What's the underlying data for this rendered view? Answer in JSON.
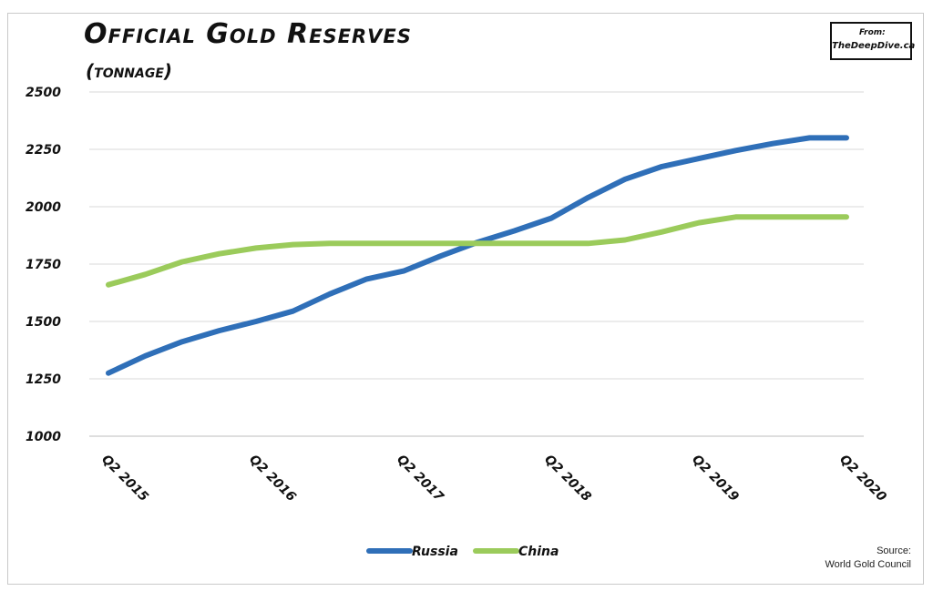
{
  "header": {
    "title": "Official Gold Reserves",
    "subtitle": "(tonnage)",
    "badge_line1": "From:",
    "badge_line2": "TheDeepDive.ca"
  },
  "footer": {
    "source_line1": "Source:",
    "source_line2": "World Gold Council"
  },
  "chart_data": {
    "type": "line",
    "title": "Official Gold Reserves",
    "subtitle": "(tonnage)",
    "x": [
      "Q2 2015",
      "Q3 2015",
      "Q4 2015",
      "Q1 2016",
      "Q2 2016",
      "Q3 2016",
      "Q4 2016",
      "Q1 2017",
      "Q2 2017",
      "Q3 2017",
      "Q4 2017",
      "Q1 2018",
      "Q2 2018",
      "Q3 2018",
      "Q4 2018",
      "Q1 2019",
      "Q2 2019",
      "Q3 2019",
      "Q4 2019",
      "Q1 2020",
      "Q2 2020"
    ],
    "x_tick_labels": [
      "Q2 2015",
      "Q2 2016",
      "Q2 2017",
      "Q2 2018",
      "Q2 2019",
      "Q2 2020"
    ],
    "y_ticks": [
      1000,
      1250,
      1500,
      1750,
      2000,
      2250,
      2500
    ],
    "ylim": [
      1000,
      2500
    ],
    "grid": true,
    "legend_position": "bottom",
    "series": [
      {
        "name": "Russia",
        "color": "#2f6fb8",
        "values": [
          1275,
          1350,
          1412,
          1460,
          1500,
          1545,
          1620,
          1685,
          1720,
          1785,
          1845,
          1895,
          1950,
          2040,
          2120,
          2175,
          2210,
          2245,
          2275,
          2300,
          2300
        ]
      },
      {
        "name": "China",
        "color": "#9bcb5b",
        "values": [
          1660,
          1705,
          1760,
          1795,
          1820,
          1835,
          1840,
          1840,
          1840,
          1840,
          1840,
          1840,
          1840,
          1840,
          1855,
          1890,
          1930,
          1955,
          1955,
          1955,
          1955
        ]
      }
    ]
  }
}
